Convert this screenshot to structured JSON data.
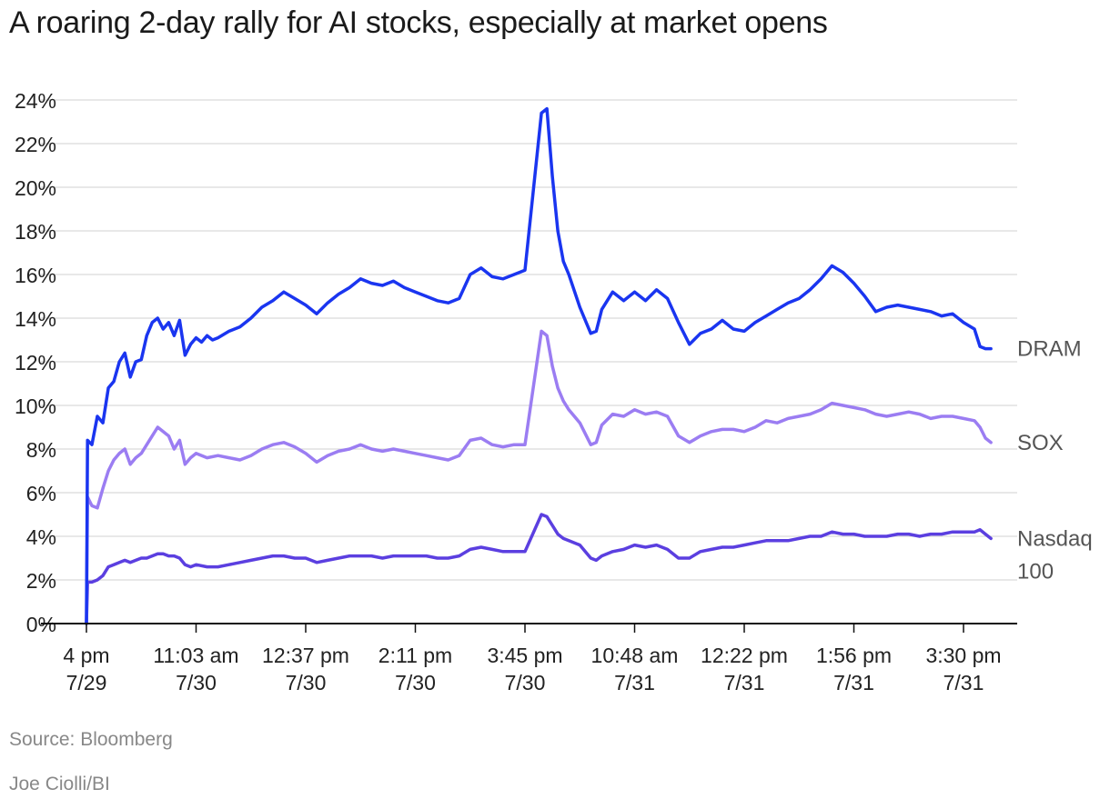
{
  "title": "A roaring 2-day rally for AI stocks, especially at market opens",
  "source": "Source: Bloomberg",
  "credit": "Joe Ciolli/BI",
  "colors": {
    "DRAM": "#1a35f0",
    "SOX": "#9b7df2",
    "Nasdaq 100": "#5b3fe0",
    "grid": "#d9d9d9",
    "axis": "#111111",
    "text": "#222222",
    "label": "#555555"
  },
  "chart_data": {
    "type": "line",
    "title": "A roaring 2-day rally for AI stocks, especially at market opens",
    "xlabel": "",
    "ylabel": "",
    "ylim": [
      0,
      24
    ],
    "y_ticks": [
      "0%",
      "2%",
      "4%",
      "6%",
      "8%",
      "10%",
      "12%",
      "14%",
      "16%",
      "18%",
      "20%",
      "22%",
      "24%"
    ],
    "y_tick_values": [
      0,
      2,
      4,
      6,
      8,
      10,
      12,
      14,
      16,
      18,
      20,
      22,
      24
    ],
    "grid": true,
    "x_range": [
      0,
      8.4
    ],
    "x_ticks": [
      {
        "x": 0,
        "time": "4 pm",
        "date": "7/29"
      },
      {
        "x": 1,
        "time": "11:03 am",
        "date": "7/30"
      },
      {
        "x": 2,
        "time": "12:37 pm",
        "date": "7/30"
      },
      {
        "x": 3,
        "time": "2:11 pm",
        "date": "7/30"
      },
      {
        "x": 4,
        "time": "3:45 pm",
        "date": "7/30"
      },
      {
        "x": 5,
        "time": "10:48 am",
        "date": "7/31"
      },
      {
        "x": 6,
        "time": "12:22 pm",
        "date": "7/31"
      },
      {
        "x": 7,
        "time": "1:56 pm",
        "date": "7/31"
      },
      {
        "x": 8,
        "time": "3:30 pm",
        "date": "7/31"
      }
    ],
    "legend_placement": "right, at line ends",
    "series": [
      {
        "name": "DRAM",
        "label_lines": [
          "DRAM"
        ],
        "points": [
          [
            0,
            0
          ],
          [
            0.01,
            8.4
          ],
          [
            0.05,
            8.2
          ],
          [
            0.1,
            9.5
          ],
          [
            0.15,
            9.2
          ],
          [
            0.2,
            10.8
          ],
          [
            0.25,
            11.1
          ],
          [
            0.3,
            12.0
          ],
          [
            0.35,
            12.4
          ],
          [
            0.4,
            11.3
          ],
          [
            0.45,
            12.0
          ],
          [
            0.5,
            12.1
          ],
          [
            0.55,
            13.2
          ],
          [
            0.6,
            13.8
          ],
          [
            0.65,
            14.0
          ],
          [
            0.7,
            13.5
          ],
          [
            0.75,
            13.8
          ],
          [
            0.8,
            13.2
          ],
          [
            0.85,
            13.9
          ],
          [
            0.9,
            12.3
          ],
          [
            0.95,
            12.8
          ],
          [
            1.0,
            13.1
          ],
          [
            1.05,
            12.9
          ],
          [
            1.1,
            13.2
          ],
          [
            1.15,
            13.0
          ],
          [
            1.2,
            13.1
          ],
          [
            1.3,
            13.4
          ],
          [
            1.4,
            13.6
          ],
          [
            1.5,
            14.0
          ],
          [
            1.6,
            14.5
          ],
          [
            1.7,
            14.8
          ],
          [
            1.8,
            15.2
          ],
          [
            1.9,
            14.9
          ],
          [
            2.0,
            14.6
          ],
          [
            2.1,
            14.2
          ],
          [
            2.2,
            14.7
          ],
          [
            2.3,
            15.1
          ],
          [
            2.4,
            15.4
          ],
          [
            2.5,
            15.8
          ],
          [
            2.6,
            15.6
          ],
          [
            2.7,
            15.5
          ],
          [
            2.8,
            15.7
          ],
          [
            2.9,
            15.4
          ],
          [
            3.0,
            15.2
          ],
          [
            3.1,
            15.0
          ],
          [
            3.2,
            14.8
          ],
          [
            3.3,
            14.7
          ],
          [
            3.4,
            14.9
          ],
          [
            3.5,
            16.0
          ],
          [
            3.6,
            16.3
          ],
          [
            3.7,
            15.9
          ],
          [
            3.8,
            15.8
          ],
          [
            3.9,
            16.0
          ],
          [
            4.0,
            16.2
          ],
          [
            4.15,
            23.4
          ],
          [
            4.2,
            23.6
          ],
          [
            4.25,
            20.5
          ],
          [
            4.3,
            18.0
          ],
          [
            4.35,
            16.6
          ],
          [
            4.4,
            16.0
          ],
          [
            4.5,
            14.5
          ],
          [
            4.6,
            13.3
          ],
          [
            4.65,
            13.4
          ],
          [
            4.7,
            14.4
          ],
          [
            4.8,
            15.2
          ],
          [
            4.9,
            14.8
          ],
          [
            5.0,
            15.2
          ],
          [
            5.1,
            14.8
          ],
          [
            5.2,
            15.3
          ],
          [
            5.3,
            14.9
          ],
          [
            5.4,
            13.8
          ],
          [
            5.5,
            12.8
          ],
          [
            5.6,
            13.3
          ],
          [
            5.7,
            13.5
          ],
          [
            5.8,
            13.9
          ],
          [
            5.9,
            13.5
          ],
          [
            6.0,
            13.4
          ],
          [
            6.1,
            13.8
          ],
          [
            6.2,
            14.1
          ],
          [
            6.3,
            14.4
          ],
          [
            6.4,
            14.7
          ],
          [
            6.5,
            14.9
          ],
          [
            6.6,
            15.3
          ],
          [
            6.7,
            15.8
          ],
          [
            6.8,
            16.4
          ],
          [
            6.9,
            16.1
          ],
          [
            7.0,
            15.6
          ],
          [
            7.1,
            15.0
          ],
          [
            7.2,
            14.3
          ],
          [
            7.3,
            14.5
          ],
          [
            7.4,
            14.6
          ],
          [
            7.5,
            14.5
          ],
          [
            7.6,
            14.4
          ],
          [
            7.7,
            14.3
          ],
          [
            7.8,
            14.1
          ],
          [
            7.9,
            14.2
          ],
          [
            8.0,
            13.8
          ],
          [
            8.1,
            13.5
          ],
          [
            8.15,
            12.7
          ],
          [
            8.2,
            12.6
          ],
          [
            8.25,
            12.6
          ]
        ]
      },
      {
        "name": "SOX",
        "label_lines": [
          "SOX"
        ],
        "points": [
          [
            0,
            0
          ],
          [
            0.01,
            5.8
          ],
          [
            0.05,
            5.4
          ],
          [
            0.1,
            5.3
          ],
          [
            0.15,
            6.2
          ],
          [
            0.2,
            7.0
          ],
          [
            0.25,
            7.5
          ],
          [
            0.3,
            7.8
          ],
          [
            0.35,
            8.0
          ],
          [
            0.4,
            7.3
          ],
          [
            0.45,
            7.6
          ],
          [
            0.5,
            7.8
          ],
          [
            0.55,
            8.2
          ],
          [
            0.6,
            8.6
          ],
          [
            0.65,
            9.0
          ],
          [
            0.7,
            8.8
          ],
          [
            0.75,
            8.6
          ],
          [
            0.8,
            8.0
          ],
          [
            0.85,
            8.4
          ],
          [
            0.9,
            7.3
          ],
          [
            0.95,
            7.6
          ],
          [
            1.0,
            7.8
          ],
          [
            1.1,
            7.6
          ],
          [
            1.2,
            7.7
          ],
          [
            1.3,
            7.6
          ],
          [
            1.4,
            7.5
          ],
          [
            1.5,
            7.7
          ],
          [
            1.6,
            8.0
          ],
          [
            1.7,
            8.2
          ],
          [
            1.8,
            8.3
          ],
          [
            1.9,
            8.1
          ],
          [
            2.0,
            7.8
          ],
          [
            2.1,
            7.4
          ],
          [
            2.2,
            7.7
          ],
          [
            2.3,
            7.9
          ],
          [
            2.4,
            8.0
          ],
          [
            2.5,
            8.2
          ],
          [
            2.6,
            8.0
          ],
          [
            2.7,
            7.9
          ],
          [
            2.8,
            8.0
          ],
          [
            2.9,
            7.9
          ],
          [
            3.0,
            7.8
          ],
          [
            3.1,
            7.7
          ],
          [
            3.2,
            7.6
          ],
          [
            3.3,
            7.5
          ],
          [
            3.4,
            7.7
          ],
          [
            3.5,
            8.4
          ],
          [
            3.6,
            8.5
          ],
          [
            3.7,
            8.2
          ],
          [
            3.8,
            8.1
          ],
          [
            3.9,
            8.2
          ],
          [
            4.0,
            8.2
          ],
          [
            4.15,
            13.4
          ],
          [
            4.2,
            13.2
          ],
          [
            4.25,
            11.8
          ],
          [
            4.3,
            10.8
          ],
          [
            4.35,
            10.2
          ],
          [
            4.4,
            9.8
          ],
          [
            4.5,
            9.2
          ],
          [
            4.6,
            8.2
          ],
          [
            4.65,
            8.3
          ],
          [
            4.7,
            9.1
          ],
          [
            4.8,
            9.6
          ],
          [
            4.9,
            9.5
          ],
          [
            5.0,
            9.8
          ],
          [
            5.1,
            9.6
          ],
          [
            5.2,
            9.7
          ],
          [
            5.3,
            9.5
          ],
          [
            5.4,
            8.6
          ],
          [
            5.5,
            8.3
          ],
          [
            5.6,
            8.6
          ],
          [
            5.7,
            8.8
          ],
          [
            5.8,
            8.9
          ],
          [
            5.9,
            8.9
          ],
          [
            6.0,
            8.8
          ],
          [
            6.1,
            9.0
          ],
          [
            6.2,
            9.3
          ],
          [
            6.3,
            9.2
          ],
          [
            6.4,
            9.4
          ],
          [
            6.5,
            9.5
          ],
          [
            6.6,
            9.6
          ],
          [
            6.7,
            9.8
          ],
          [
            6.8,
            10.1
          ],
          [
            6.9,
            10.0
          ],
          [
            7.0,
            9.9
          ],
          [
            7.1,
            9.8
          ],
          [
            7.2,
            9.6
          ],
          [
            7.3,
            9.5
          ],
          [
            7.4,
            9.6
          ],
          [
            7.5,
            9.7
          ],
          [
            7.6,
            9.6
          ],
          [
            7.7,
            9.4
          ],
          [
            7.8,
            9.5
          ],
          [
            7.9,
            9.5
          ],
          [
            8.0,
            9.4
          ],
          [
            8.1,
            9.3
          ],
          [
            8.15,
            9.0
          ],
          [
            8.2,
            8.5
          ],
          [
            8.25,
            8.3
          ]
        ]
      },
      {
        "name": "Nasdaq 100",
        "label_lines": [
          "Nasdaq",
          "100"
        ],
        "points": [
          [
            0,
            0
          ],
          [
            0.01,
            1.9
          ],
          [
            0.05,
            1.9
          ],
          [
            0.1,
            2.0
          ],
          [
            0.15,
            2.2
          ],
          [
            0.2,
            2.6
          ],
          [
            0.25,
            2.7
          ],
          [
            0.3,
            2.8
          ],
          [
            0.35,
            2.9
          ],
          [
            0.4,
            2.8
          ],
          [
            0.45,
            2.9
          ],
          [
            0.5,
            3.0
          ],
          [
            0.55,
            3.0
          ],
          [
            0.6,
            3.1
          ],
          [
            0.65,
            3.2
          ],
          [
            0.7,
            3.2
          ],
          [
            0.75,
            3.1
          ],
          [
            0.8,
            3.1
          ],
          [
            0.85,
            3.0
          ],
          [
            0.9,
            2.7
          ],
          [
            0.95,
            2.6
          ],
          [
            1.0,
            2.7
          ],
          [
            1.1,
            2.6
          ],
          [
            1.2,
            2.6
          ],
          [
            1.3,
            2.7
          ],
          [
            1.4,
            2.8
          ],
          [
            1.5,
            2.9
          ],
          [
            1.6,
            3.0
          ],
          [
            1.7,
            3.1
          ],
          [
            1.8,
            3.1
          ],
          [
            1.9,
            3.0
          ],
          [
            2.0,
            3.0
          ],
          [
            2.1,
            2.8
          ],
          [
            2.2,
            2.9
          ],
          [
            2.3,
            3.0
          ],
          [
            2.4,
            3.1
          ],
          [
            2.5,
            3.1
          ],
          [
            2.6,
            3.1
          ],
          [
            2.7,
            3.0
          ],
          [
            2.8,
            3.1
          ],
          [
            2.9,
            3.1
          ],
          [
            3.0,
            3.1
          ],
          [
            3.1,
            3.1
          ],
          [
            3.2,
            3.0
          ],
          [
            3.3,
            3.0
          ],
          [
            3.4,
            3.1
          ],
          [
            3.5,
            3.4
          ],
          [
            3.6,
            3.5
          ],
          [
            3.7,
            3.4
          ],
          [
            3.8,
            3.3
          ],
          [
            3.9,
            3.3
          ],
          [
            4.0,
            3.3
          ],
          [
            4.15,
            5.0
          ],
          [
            4.2,
            4.9
          ],
          [
            4.25,
            4.5
          ],
          [
            4.3,
            4.1
          ],
          [
            4.35,
            3.9
          ],
          [
            4.4,
            3.8
          ],
          [
            4.5,
            3.6
          ],
          [
            4.6,
            3.0
          ],
          [
            4.65,
            2.9
          ],
          [
            4.7,
            3.1
          ],
          [
            4.8,
            3.3
          ],
          [
            4.9,
            3.4
          ],
          [
            5.0,
            3.6
          ],
          [
            5.1,
            3.5
          ],
          [
            5.2,
            3.6
          ],
          [
            5.3,
            3.4
          ],
          [
            5.4,
            3.0
          ],
          [
            5.5,
            3.0
          ],
          [
            5.6,
            3.3
          ],
          [
            5.7,
            3.4
          ],
          [
            5.8,
            3.5
          ],
          [
            5.9,
            3.5
          ],
          [
            6.0,
            3.6
          ],
          [
            6.1,
            3.7
          ],
          [
            6.2,
            3.8
          ],
          [
            6.3,
            3.8
          ],
          [
            6.4,
            3.8
          ],
          [
            6.5,
            3.9
          ],
          [
            6.6,
            4.0
          ],
          [
            6.7,
            4.0
          ],
          [
            6.8,
            4.2
          ],
          [
            6.9,
            4.1
          ],
          [
            7.0,
            4.1
          ],
          [
            7.1,
            4.0
          ],
          [
            7.2,
            4.0
          ],
          [
            7.3,
            4.0
          ],
          [
            7.4,
            4.1
          ],
          [
            7.5,
            4.1
          ],
          [
            7.6,
            4.0
          ],
          [
            7.7,
            4.1
          ],
          [
            7.8,
            4.1
          ],
          [
            7.9,
            4.2
          ],
          [
            8.0,
            4.2
          ],
          [
            8.1,
            4.2
          ],
          [
            8.15,
            4.3
          ],
          [
            8.2,
            4.1
          ],
          [
            8.25,
            3.9
          ]
        ]
      }
    ]
  }
}
